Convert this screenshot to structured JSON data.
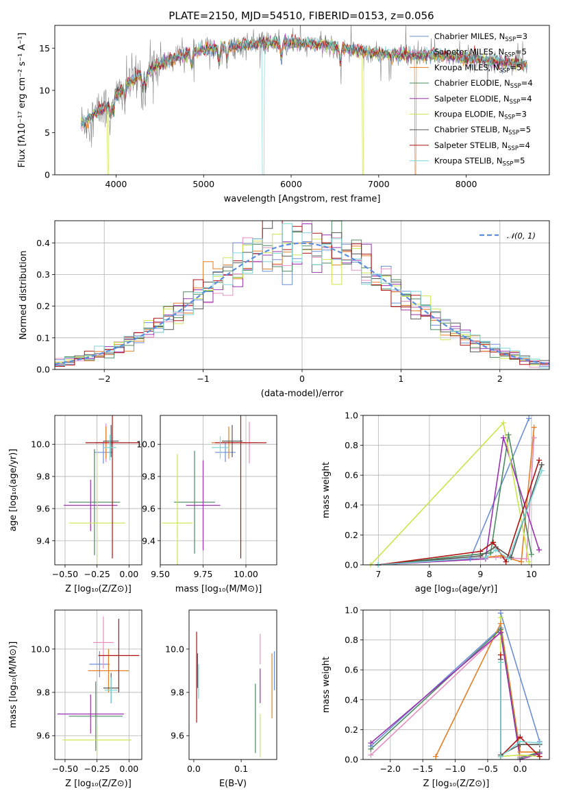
{
  "title": "PLATE=2150, MJD=54510, FIBERID=0153, z=0.056",
  "colors": {
    "chabrier_miles": "#6b8dd6",
    "salpeter_miles": "#e88fbf",
    "kroupa_miles": "#e67e22",
    "chabrier_elodie": "#4a8a5c",
    "salpeter_elodie": "#9b30b0",
    "kroupa_elodie": "#c9e64a",
    "chabrier_stelib": "#555555",
    "salpeter_stelib": "#b01010",
    "kroupa_stelib": "#7ad6d6",
    "data": "#808080",
    "normal": "#5b8dde",
    "grid": "#b0b0b0"
  },
  "chart_data": [
    {
      "type": "line",
      "id": "spectrum",
      "title": "PLATE=2150, MJD=54510, FIBERID=0153, z=0.056",
      "xlabel": "wavelength [Angstrom, rest frame]",
      "ylabel": "Flux [fλ10⁻¹⁷ erg cm⁻² s⁻¹ A⁻¹]",
      "xlim": [
        3300,
        8950
      ],
      "ylim": [
        0,
        17.7
      ],
      "xticks": [
        4000,
        5000,
        6000,
        7000,
        8000
      ],
      "yticks": [
        0,
        5,
        10,
        15
      ],
      "grid": false,
      "legend_position": "right",
      "legend": [
        {
          "label": "Chabrier MILES, N",
          "sub": "SSP",
          "val": "=3",
          "color": "#6b8dd6"
        },
        {
          "label": "Salpeter MILES, N",
          "sub": "SSP",
          "val": "=5",
          "color": "#e88fbf"
        },
        {
          "label": "Kroupa MILES, N",
          "sub": "SSP",
          "val": "=5",
          "color": "#e67e22"
        },
        {
          "label": "Chabrier ELODIE, N",
          "sub": "SSP",
          "val": "=4",
          "color": "#4a8a5c"
        },
        {
          "label": "Salpeter ELODIE, N",
          "sub": "SSP",
          "val": "=4",
          "color": "#9b30b0"
        },
        {
          "label": "Kroupa ELODIE, N",
          "sub": "SSP",
          "val": "=3",
          "color": "#c9e64a"
        },
        {
          "label": "Chabrier STELIB, N",
          "sub": "SSP",
          "val": "=5",
          "color": "#555555"
        },
        {
          "label": "Salpeter STELIB, N",
          "sub": "SSP",
          "val": "=4",
          "color": "#b01010"
        },
        {
          "label": "Kroupa STELIB, N",
          "sub": "SSP",
          "val": "=5",
          "color": "#7ad6d6"
        }
      ],
      "continuum": {
        "x": [
          3600,
          3700,
          3800,
          3900,
          4000,
          4100,
          4200,
          4300,
          4400,
          4500,
          4600,
          4700,
          4800,
          4900,
          5000,
          5200,
          5400,
          5600,
          5800,
          6000,
          6200,
          6400,
          6600,
          6800,
          7000,
          7200,
          7400,
          7600,
          7800,
          8000,
          8200,
          8400,
          8600,
          8700
        ],
        "y": [
          6.0,
          6.8,
          7.5,
          8.2,
          9.3,
          10.5,
          11.3,
          11.9,
          12.5,
          13.0,
          13.5,
          14.0,
          14.3,
          14.6,
          14.8,
          15.1,
          15.3,
          15.5,
          15.6,
          15.6,
          15.5,
          15.3,
          15.0,
          14.6,
          14.3,
          14.2,
          14.1,
          14.2,
          14.0,
          13.8,
          13.6,
          13.4,
          13.2,
          13.0
        ]
      },
      "model_dropouts": [
        {
          "model": "kroupa_elodie",
          "x": 3910
        },
        {
          "model": "kroupa_stelib",
          "x": 5680
        },
        {
          "model": "kroupa_elodie",
          "x": 6820
        },
        {
          "model": "kroupa_miles",
          "x": 7420
        }
      ]
    },
    {
      "type": "histogram",
      "id": "residuals",
      "xlabel": "(data-model)/error",
      "ylabel": "Normed distribution",
      "xlim": [
        -2.5,
        2.5
      ],
      "ylim": [
        0,
        0.47
      ],
      "xticks": [
        -2,
        -1,
        0,
        1,
        2
      ],
      "yticks": [
        0.0,
        0.1,
        0.2,
        0.3,
        0.4
      ],
      "grid": true,
      "legend_position": "top-right",
      "legend": [
        {
          "label": "𝒩(0, 1)",
          "color": "#5b8dde",
          "style": "dashed"
        }
      ],
      "bin_width": 0.1
    },
    {
      "type": "scatter",
      "id": "age_vs_Z",
      "xlabel": "Z [log₁₀(Z/Z⊙)]",
      "ylabel": "age  [log₁₀(age/yr)]",
      "xlim": [
        -0.58,
        0.1
      ],
      "ylim": [
        9.25,
        10.18
      ],
      "xticks": [
        -0.5,
        -0.25,
        0.0
      ],
      "yticks": [
        9.4,
        9.6,
        9.8,
        10.0
      ],
      "grid": true,
      "points": [
        {
          "model": "chabrier_miles",
          "x": -0.2,
          "y": 9.95,
          "xerr": 0.07,
          "yerr": 0.07
        },
        {
          "model": "salpeter_miles",
          "x": -0.18,
          "y": 10.01,
          "xerr": 0.08,
          "yerr": 0.12
        },
        {
          "model": "kroupa_miles",
          "x": -0.18,
          "y": 10.01,
          "xerr": 0.08,
          "yerr": 0.1
        },
        {
          "model": "chabrier_elodie",
          "x": -0.27,
          "y": 9.64,
          "xerr": 0.2,
          "yerr": 0.33
        },
        {
          "model": "salpeter_elodie",
          "x": -0.3,
          "y": 9.62,
          "xerr": 0.21,
          "yerr": 0.16
        },
        {
          "model": "kroupa_elodie",
          "x": -0.25,
          "y": 9.51,
          "xerr": 0.22,
          "yerr": 0.45
        },
        {
          "model": "chabrier_stelib",
          "x": -0.14,
          "y": 10.02,
          "xerr": 0.06,
          "yerr": 0.1
        },
        {
          "model": "salpeter_stelib",
          "x": -0.13,
          "y": 10.01,
          "xerr": 0.21,
          "yerr": 0.72
        },
        {
          "model": "kroupa_stelib",
          "x": -0.15,
          "y": 9.98,
          "xerr": 0.05,
          "yerr": 0.08
        }
      ]
    },
    {
      "type": "scatter",
      "id": "age_vs_mass",
      "xlabel": "mass [log₁₀(M/M⊙)]",
      "ylabel": "",
      "xlim": [
        9.5,
        10.18
      ],
      "ylim": [
        9.25,
        10.18
      ],
      "xticks": [
        9.5,
        9.75,
        10.0
      ],
      "yticks": [
        9.4,
        9.6,
        9.8,
        10.0
      ],
      "grid": true,
      "points": [
        {
          "model": "chabrier_miles",
          "x": 9.88,
          "y": 9.95,
          "xerr": 0.06,
          "yerr": 0.06
        },
        {
          "model": "salpeter_miles",
          "x": 10.02,
          "y": 10.01,
          "xerr": 0.05,
          "yerr": 0.13
        },
        {
          "model": "kroupa_miles",
          "x": 9.9,
          "y": 10.01,
          "xerr": 0.1,
          "yerr": 0.1
        },
        {
          "model": "chabrier_elodie",
          "x": 9.7,
          "y": 9.64,
          "xerr": 0.12,
          "yerr": 0.32
        },
        {
          "model": "salpeter_elodie",
          "x": 9.75,
          "y": 9.62,
          "xerr": 0.1,
          "yerr": 0.28
        },
        {
          "model": "kroupa_elodie",
          "x": 9.6,
          "y": 9.51,
          "xerr": 0.09,
          "yerr": 0.43
        },
        {
          "model": "chabrier_stelib",
          "x": 9.92,
          "y": 10.02,
          "xerr": 0.06,
          "yerr": 0.1
        },
        {
          "model": "salpeter_stelib",
          "x": 9.97,
          "y": 10.01,
          "xerr": 0.15,
          "yerr": 0.72
        },
        {
          "model": "kroupa_stelib",
          "x": 9.85,
          "y": 9.98,
          "xerr": 0.05,
          "yerr": 0.07
        }
      ]
    },
    {
      "type": "line",
      "id": "weight_vs_age",
      "xlabel": "age  [log₁₀(age/yr)]",
      "ylabel": "mass weight",
      "xlim": [
        6.7,
        10.35
      ],
      "ylim": [
        0,
        1.0
      ],
      "xticks": [
        7,
        8,
        9,
        10
      ],
      "yticks": [
        0.0,
        0.2,
        0.4,
        0.6,
        0.8,
        1.0
      ],
      "grid": true,
      "series": [
        {
          "model": "chabrier_miles",
          "x": [
            7.0,
            8.8,
            9.95
          ],
          "y": [
            0.0,
            0.04,
            0.98
          ]
        },
        {
          "model": "salpeter_miles",
          "x": [
            7.0,
            9.0,
            9.3,
            9.9,
            10.05
          ],
          "y": [
            0.0,
            0.05,
            0.05,
            0.04,
            0.85
          ]
        },
        {
          "model": "kroupa_miles",
          "x": [
            7.0,
            9.1,
            9.4,
            9.8,
            10.05
          ],
          "y": [
            0.0,
            0.05,
            0.06,
            0.02,
            0.92
          ]
        },
        {
          "model": "chabrier_elodie",
          "x": [
            7.0,
            9.2,
            9.55,
            10.0
          ],
          "y": [
            0.0,
            0.08,
            0.87,
            0.07
          ]
        },
        {
          "model": "salpeter_elodie",
          "x": [
            7.0,
            9.1,
            9.45,
            10.15
          ],
          "y": [
            0.0,
            0.04,
            0.85,
            0.1
          ]
        },
        {
          "model": "kroupa_elodie",
          "x": [
            6.85,
            9.45,
            9.95
          ],
          "y": [
            0.0,
            0.95,
            0.02
          ]
        },
        {
          "model": "chabrier_stelib",
          "x": [
            7.0,
            9.0,
            9.3,
            9.6,
            10.2
          ],
          "y": [
            0.0,
            0.06,
            0.12,
            0.05,
            0.67
          ]
        },
        {
          "model": "salpeter_stelib",
          "x": [
            7.0,
            9.0,
            9.25,
            9.5,
            10.15
          ],
          "y": [
            0.0,
            0.09,
            0.15,
            0.02,
            0.7
          ]
        },
        {
          "model": "kroupa_stelib",
          "x": [
            7.0,
            9.1,
            9.3,
            9.55,
            10.2
          ],
          "y": [
            0.0,
            0.05,
            0.1,
            0.04,
            0.63
          ]
        }
      ]
    },
    {
      "type": "scatter",
      "id": "mass_vs_Z",
      "xlabel": "Z [log₁₀(Z/Z⊙)]",
      "ylabel": "mass [log₁₀(M/M⊙)]",
      "xlim": [
        -0.58,
        0.1
      ],
      "ylim": [
        9.49,
        10.18
      ],
      "xticks": [
        -0.5,
        -0.25,
        0.0
      ],
      "yticks": [
        9.6,
        9.8,
        10.0
      ],
      "grid": true,
      "points": [
        {
          "model": "chabrier_miles",
          "x": -0.23,
          "y": 9.93,
          "xerr": 0.08,
          "yerr": 0.06
        },
        {
          "model": "salpeter_miles",
          "x": -0.2,
          "y": 10.03,
          "xerr": 0.08,
          "yerr": 0.12
        },
        {
          "model": "kroupa_miles",
          "x": -0.16,
          "y": 9.9,
          "xerr": 0.16,
          "yerr": 0.1
        },
        {
          "model": "chabrier_elodie",
          "x": -0.26,
          "y": 9.69,
          "xerr": 0.21,
          "yerr": 0.16
        },
        {
          "model": "salpeter_elodie",
          "x": -0.3,
          "y": 9.7,
          "xerr": 0.26,
          "yerr": 0.09
        },
        {
          "model": "kroupa_elodie",
          "x": -0.25,
          "y": 9.58,
          "xerr": 0.27,
          "yerr": 0.07
        },
        {
          "model": "chabrier_stelib",
          "x": -0.14,
          "y": 9.82,
          "xerr": 0.06,
          "yerr": 0.07
        },
        {
          "model": "salpeter_stelib",
          "x": -0.08,
          "y": 9.97,
          "xerr": 0.16,
          "yerr": 0.17
        },
        {
          "model": "kroupa_stelib",
          "x": -0.14,
          "y": 9.81,
          "xerr": 0.05,
          "yerr": 0.06
        }
      ]
    },
    {
      "type": "scatter",
      "id": "mass_vs_ebv",
      "xlabel": "E(B-V)",
      "ylabel": "",
      "xlim": [
        -0.01,
        0.175
      ],
      "ylim": [
        9.49,
        10.18
      ],
      "xticks": [
        0.0,
        0.1
      ],
      "yticks": [
        9.6,
        9.8,
        10.0
      ],
      "grid": false,
      "points": [
        {
          "model": "chabrier_miles",
          "x": 0.17,
          "y": 9.9,
          "xerr": 0.0,
          "yerr": 0.09
        },
        {
          "model": "salpeter_miles",
          "x": 0.14,
          "y": 10.0,
          "xerr": 0.0,
          "yerr": 0.07
        },
        {
          "model": "kroupa_miles",
          "x": 0.165,
          "y": 9.83,
          "xerr": 0.0,
          "yerr": 0.15
        },
        {
          "model": "chabrier_elodie",
          "x": 0.13,
          "y": 9.68,
          "xerr": 0.0,
          "yerr": 0.16
        },
        {
          "model": "salpeter_elodie",
          "x": 0.14,
          "y": 9.83,
          "xerr": 0.0,
          "yerr": 0.08
        },
        {
          "model": "kroupa_elodie",
          "x": 0.14,
          "y": 9.6,
          "xerr": 0.0,
          "yerr": 0.1
        },
        {
          "model": "chabrier_stelib",
          "x": 0.008,
          "y": 9.9,
          "xerr": 0.0,
          "yerr": 0.08
        },
        {
          "model": "salpeter_stelib",
          "x": 0.006,
          "y": 9.87,
          "xerr": 0.0,
          "yerr": 0.21
        },
        {
          "model": "kroupa_stelib",
          "x": 0.01,
          "y": 9.85,
          "xerr": 0.0,
          "yerr": 0.08
        }
      ]
    },
    {
      "type": "line",
      "id": "weight_vs_Z",
      "xlabel": "Z [log₁₀(Z/Z⊙)]",
      "ylabel": "mass weight",
      "xlim": [
        -2.42,
        0.45
      ],
      "ylim": [
        0,
        1.0
      ],
      "xticks": [
        -2.0,
        -1.5,
        -1.0,
        -0.5,
        0.0
      ],
      "yticks": [
        0.0,
        0.2,
        0.4,
        0.6,
        0.8,
        1.0
      ],
      "grid": true,
      "series": [
        {
          "model": "chabrier_miles",
          "x": [
            -2.3,
            -0.3,
            -0.3,
            0.3
          ],
          "y": [
            0.09,
            0.88,
            0.98,
            0.12
          ]
        },
        {
          "model": "salpeter_miles",
          "x": [
            -2.3,
            -0.3,
            0.0,
            0.3
          ],
          "y": [
            0.03,
            0.85,
            0.02,
            0.04
          ]
        },
        {
          "model": "kroupa_miles",
          "x": [
            -1.3,
            -0.3,
            0.0,
            0.3
          ],
          "y": [
            0.02,
            0.91,
            0.05,
            0.05
          ]
        },
        {
          "model": "chabrier_elodie",
          "x": [
            -2.3,
            -0.3,
            0.0,
            0.3
          ],
          "y": [
            0.07,
            0.87,
            0.01,
            0.05
          ]
        },
        {
          "model": "salpeter_elodie",
          "x": [
            -2.3,
            -0.3,
            0.0,
            0.3
          ],
          "y": [
            0.11,
            0.85,
            0.0,
            0.04
          ]
        },
        {
          "model": "kroupa_elodie",
          "x": [
            -0.3,
            -0.3,
            0.0,
            0.3
          ],
          "y": [
            0.95,
            0.02,
            0.03,
            0.02
          ]
        },
        {
          "model": "chabrier_stelib",
          "x": [
            -0.3,
            -0.3,
            0.0,
            0.3
          ],
          "y": [
            0.67,
            0.03,
            0.1,
            0.1
          ]
        },
        {
          "model": "salpeter_stelib",
          "x": [
            -0.3,
            -0.3,
            0.0,
            0.3
          ],
          "y": [
            0.7,
            0.02,
            0.15,
            0.02
          ]
        },
        {
          "model": "kroupa_stelib",
          "x": [
            -0.3,
            -0.3,
            0.0,
            0.3
          ],
          "y": [
            0.65,
            0.02,
            0.12,
            0.11
          ]
        }
      ]
    }
  ]
}
